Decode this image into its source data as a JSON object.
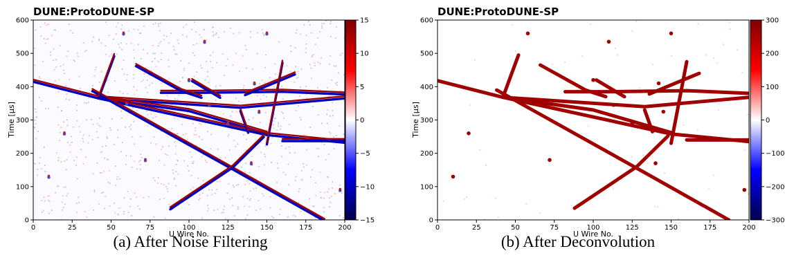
{
  "chart_data": [
    {
      "type": "heatmap",
      "title": "DUNE:ProtoDUNE-SP",
      "xlabel": "U Wire No.",
      "ylabel": "Time [μs]",
      "xlim": [
        0,
        200
      ],
      "ylim": [
        0,
        600
      ],
      "xticks": [
        "0",
        "25",
        "50",
        "75",
        "100",
        "125",
        "150",
        "175",
        "200"
      ],
      "yticks": [
        "0",
        "100",
        "200",
        "300",
        "400",
        "500",
        "600"
      ],
      "colorbar": {
        "colormap": "seismic",
        "range": [
          -15,
          15
        ],
        "ticks": [
          "15",
          "10",
          "5",
          "0",
          "−5",
          "−10",
          "−15"
        ]
      },
      "caption": "(a) After Noise Filtering"
    },
    {
      "type": "heatmap",
      "title": "DUNE:ProtoDUNE-SP",
      "xlabel": "U Wire No.",
      "ylabel": "Time [μs]",
      "xlim": [
        0,
        200
      ],
      "ylim": [
        0,
        600
      ],
      "xticks": [
        "0",
        "25",
        "50",
        "75",
        "100",
        "125",
        "150",
        "175",
        "200"
      ],
      "yticks": [
        "0",
        "100",
        "200",
        "300",
        "400",
        "500",
        "600"
      ],
      "colorbar": {
        "colormap": "seismic",
        "range": [
          -300,
          300
        ],
        "ticks": [
          "300",
          "200",
          "100",
          "0",
          "−100",
          "−200",
          "−300"
        ]
      },
      "caption": "(b) After Deconvolution"
    }
  ],
  "colors": {
    "track_positive": "#a10000",
    "track_negative": "#0000c0",
    "noise_red": "#f4b8b8",
    "noise_blue": "#b8c4f0"
  },
  "tracks": [
    {
      "points": [
        [
          0,
          418
        ],
        [
          42,
          368
        ],
        [
          133,
          340
        ],
        [
          200,
          368
        ]
      ]
    },
    {
      "points": [
        [
          42,
          368
        ],
        [
          100,
          330
        ],
        [
          150,
          262
        ]
      ]
    },
    {
      "points": [
        [
          42,
          368
        ],
        [
          150,
          258
        ],
        [
          200,
          235
        ]
      ]
    },
    {
      "points": [
        [
          38,
          390
        ],
        [
          130,
          150
        ],
        [
          187,
          0
        ]
      ]
    },
    {
      "points": [
        [
          42,
          368
        ],
        [
          52,
          495
        ]
      ]
    },
    {
      "points": [
        [
          88,
          35
        ],
        [
          128,
          160
        ],
        [
          148,
          252
        ]
      ]
    },
    {
      "points": [
        [
          82,
          385
        ],
        [
          110,
          385
        ],
        [
          160,
          388
        ],
        [
          200,
          380
        ]
      ]
    },
    {
      "points": [
        [
          136,
          378
        ],
        [
          168,
          440
        ]
      ]
    },
    {
      "points": [
        [
          160,
          240
        ],
        [
          200,
          240
        ]
      ]
    },
    {
      "points": [
        [
          150,
          230
        ],
        [
          160,
          475
        ]
      ]
    },
    {
      "points": [
        [
          66,
          465
        ],
        [
          95,
          390
        ],
        [
          108,
          370
        ]
      ]
    },
    {
      "points": [
        [
          133,
          330
        ],
        [
          138,
          265
        ]
      ]
    },
    {
      "points": [
        [
          102,
          420
        ],
        [
          120,
          370
        ]
      ]
    }
  ],
  "blobs": [
    [
      60,
      350
    ],
    [
      100,
      420
    ],
    [
      113,
      345
    ],
    [
      142,
      410
    ],
    [
      140,
      170
    ],
    [
      110,
      535
    ],
    [
      150,
      560
    ],
    [
      72,
      180
    ],
    [
      20,
      260
    ],
    [
      197,
      90
    ],
    [
      10,
      130
    ],
    [
      145,
      325
    ],
    [
      125,
      290
    ],
    [
      58,
      560
    ]
  ]
}
